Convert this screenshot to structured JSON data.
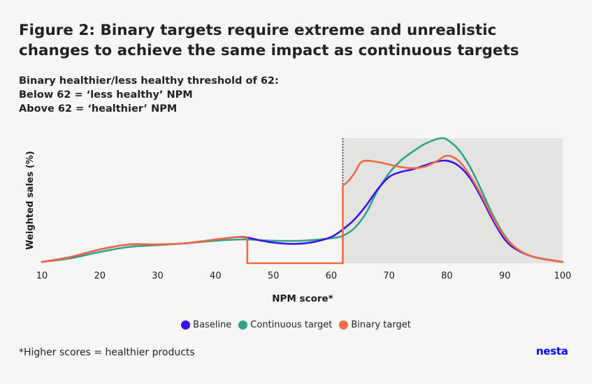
{
  "title": "Figure 2: Binary targets require extreme and unrealistic changes to achieve the same impact as continuous targets",
  "subtitle": [
    "Binary healthier/less healthy threshold of 62:",
    "Below 62 = ‘less healthy’ NPM",
    "Above 62 = ‘healthier’ NPM"
  ],
  "footnote": "*Higher scores = healthier products",
  "logo": "nesta",
  "chart_data": {
    "type": "line",
    "title": "Figure 2: Binary targets require extreme and unrealistic changes to achieve the same impact as continuous targets",
    "xlabel": "NPM score*",
    "ylabel": "Weighted sales (%)",
    "xlim": [
      10,
      100
    ],
    "ylim": [
      0,
      100
    ],
    "xticks": [
      10,
      20,
      30,
      40,
      50,
      60,
      70,
      80,
      90,
      100
    ],
    "show_y_ticks": false,
    "threshold": 62,
    "shaded_region": [
      62,
      100
    ],
    "legend_position": "bottom-center",
    "series": [
      {
        "name": "Baseline",
        "color": "#3b0ff0",
        "x": [
          10,
          15,
          20,
          25,
          30,
          35,
          40,
          44,
          45.5,
          48,
          51,
          54,
          57,
          60,
          62,
          64,
          66,
          68,
          70,
          72,
          74,
          76,
          78,
          80,
          82,
          84,
          86,
          88,
          90,
          92,
          95,
          100
        ],
        "y": [
          1,
          5,
          11,
          15,
          15,
          16,
          19,
          21,
          20.5,
          18,
          16,
          15.5,
          17,
          21,
          27,
          35,
          46,
          59,
          69,
          73,
          75,
          78,
          81,
          82,
          78,
          68,
          52,
          34,
          19,
          11,
          5,
          1
        ]
      },
      {
        "name": "Continuous target",
        "color": "#2fa38a",
        "x": [
          10,
          15,
          20,
          25,
          30,
          35,
          40,
          45,
          50,
          55,
          60,
          62,
          64,
          66,
          68,
          70,
          72,
          74,
          76,
          78,
          79,
          80,
          82,
          84,
          86,
          88,
          90,
          92,
          95,
          100
        ],
        "y": [
          1,
          4,
          9,
          13,
          14.5,
          16,
          18,
          19,
          18,
          18,
          20,
          22,
          28,
          40,
          58,
          72,
          82,
          89,
          95,
          99,
          100,
          99,
          91,
          77,
          58,
          38,
          22,
          12,
          5,
          1
        ]
      },
      {
        "name": "Binary target",
        "color": "#ee6a42",
        "x": [
          10,
          15,
          20,
          25,
          30,
          35,
          40,
          44,
          45.5,
          45.5,
          62,
          62,
          63,
          64,
          65,
          66,
          68,
          70,
          72,
          74,
          76,
          78,
          80,
          82,
          84,
          86,
          88,
          90,
          92,
          95,
          100
        ],
        "y": [
          1,
          5,
          11,
          15,
          15,
          16,
          19,
          21,
          20,
          0,
          0,
          62,
          66,
          72,
          80,
          82,
          81,
          79,
          77,
          76,
          77,
          81,
          86,
          82,
          70,
          54,
          36,
          21,
          12,
          5,
          1
        ]
      }
    ]
  }
}
